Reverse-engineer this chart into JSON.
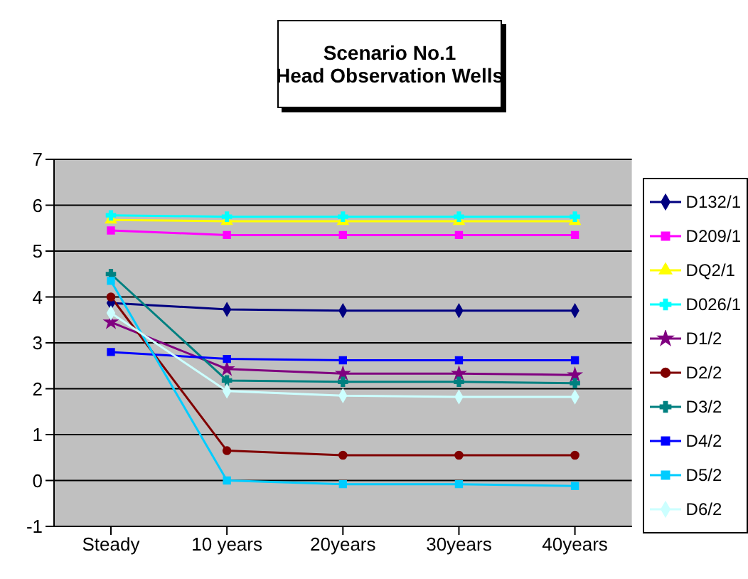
{
  "chart_data": {
    "type": "line",
    "title": "Scenario No.1\nHead Observation Wells",
    "categories": [
      "Steady",
      "10 years",
      "20years",
      "30years",
      "40years"
    ],
    "ylim": [
      -1,
      7
    ],
    "yticks": [
      -1,
      0,
      1,
      2,
      3,
      4,
      5,
      6,
      7
    ],
    "grid": "y",
    "legend": "right",
    "series": [
      {
        "name": "D132/1",
        "color": "#000080",
        "marker": "diamond",
        "values": [
          3.87,
          3.73,
          3.7,
          3.7,
          3.7
        ]
      },
      {
        "name": "D209/1",
        "color": "#ff00ff",
        "marker": "square",
        "values": [
          5.45,
          5.35,
          5.35,
          5.35,
          5.35
        ]
      },
      {
        "name": "DQ2/1",
        "color": "#ffff00",
        "marker": "triangle",
        "values": [
          5.68,
          5.65,
          5.65,
          5.65,
          5.65
        ]
      },
      {
        "name": "D026/1",
        "color": "#00ffff",
        "marker": "cross",
        "values": [
          5.78,
          5.75,
          5.75,
          5.75,
          5.75
        ]
      },
      {
        "name": "D1/2",
        "color": "#800080",
        "marker": "star",
        "values": [
          3.45,
          2.43,
          2.33,
          2.33,
          2.3
        ]
      },
      {
        "name": "D2/2",
        "color": "#800000",
        "marker": "circle",
        "values": [
          4.0,
          0.65,
          0.55,
          0.55,
          0.55
        ]
      },
      {
        "name": "D3/2",
        "color": "#008080",
        "marker": "cross",
        "values": [
          4.5,
          2.18,
          2.15,
          2.15,
          2.12
        ]
      },
      {
        "name": "D4/2",
        "color": "#0000ff",
        "marker": "square",
        "values": [
          2.8,
          2.65,
          2.62,
          2.62,
          2.62
        ]
      },
      {
        "name": "D5/2",
        "color": "#00ccff",
        "marker": "square",
        "values": [
          4.35,
          0,
          -0.08,
          -0.08,
          -0.12
        ]
      },
      {
        "name": "D6/2",
        "color": "#ccffff",
        "marker": "diamond",
        "values": [
          3.65,
          1.95,
          1.85,
          1.82,
          1.82
        ]
      }
    ]
  }
}
